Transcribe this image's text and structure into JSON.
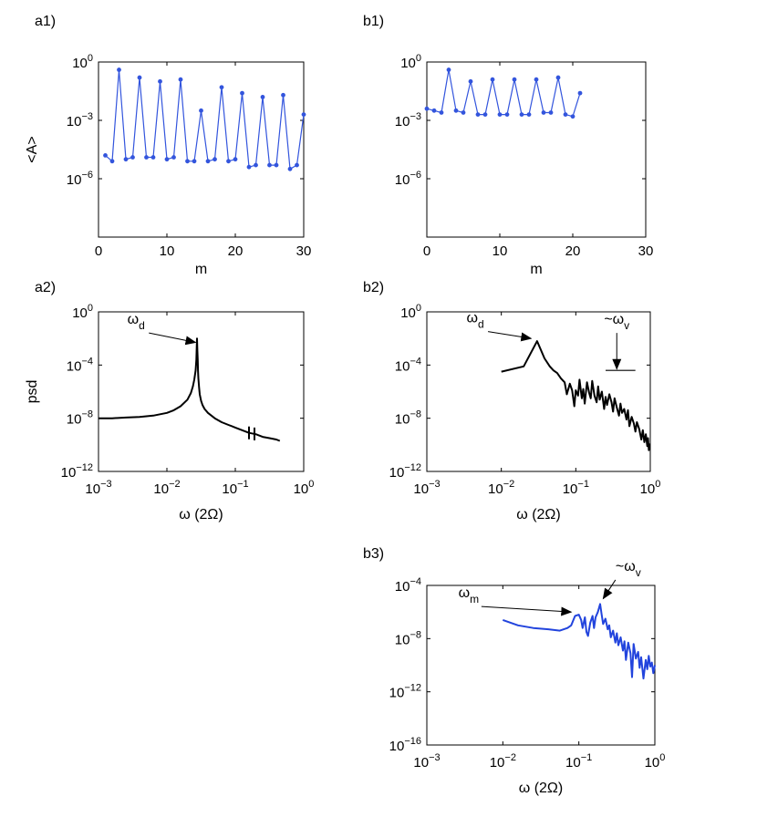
{
  "chart_data": [
    {
      "id": "a1",
      "panel_label": "a1)",
      "type": "line",
      "xlabel": "m",
      "ylabel": "<A>",
      "yscale": "log",
      "xlim": [
        0,
        30
      ],
      "ylim_exp": [
        -9,
        0
      ],
      "xticks": [
        0,
        10,
        20,
        30
      ],
      "yticks_exp": [
        0,
        -3,
        -6
      ],
      "color": "#3355dd",
      "markers": true,
      "series": [
        {
          "x": [
            1,
            2,
            3,
            4,
            5,
            6,
            7,
            8,
            9,
            10,
            11,
            12,
            13,
            14,
            15,
            16,
            17,
            18,
            19,
            20,
            21,
            22,
            23,
            24,
            25,
            26,
            27,
            28,
            29,
            30
          ],
          "y_exp": [
            -4.8,
            -5.1,
            -0.4,
            -5.0,
            -4.9,
            -0.8,
            -4.9,
            -4.9,
            -1.0,
            -5.0,
            -4.9,
            -0.9,
            -5.1,
            -5.1,
            -2.5,
            -5.1,
            -5.0,
            -1.3,
            -5.1,
            -5.0,
            -1.6,
            -5.4,
            -5.3,
            -1.8,
            -5.3,
            -5.3,
            -1.7,
            -5.5,
            -5.3,
            -2.7
          ]
        }
      ]
    },
    {
      "id": "b1",
      "panel_label": "b1)",
      "type": "line",
      "xlabel": "m",
      "ylabel": "",
      "yscale": "log",
      "xlim": [
        0,
        30
      ],
      "ylim_exp": [
        -9,
        0
      ],
      "xticks": [
        0,
        10,
        20,
        30
      ],
      "yticks_exp": [
        0,
        -3,
        -6
      ],
      "color": "#3355dd",
      "markers": true,
      "series": [
        {
          "x": [
            0,
            1,
            2,
            3,
            4,
            5,
            6,
            7,
            8,
            9,
            10,
            11,
            12,
            13,
            14,
            15,
            16,
            17,
            18,
            19,
            20,
            21
          ],
          "y_exp": [
            -2.4,
            -2.5,
            -2.6,
            -0.4,
            -2.5,
            -2.6,
            -1.0,
            -2.7,
            -2.7,
            -0.9,
            -2.7,
            -2.7,
            -0.9,
            -2.7,
            -2.7,
            -0.9,
            -2.6,
            -2.6,
            -0.8,
            -2.7,
            -2.8,
            -1.6
          ]
        }
      ]
    },
    {
      "id": "a2",
      "panel_label": "a2)",
      "type": "line",
      "xlabel": "ω (2Ω)",
      "ylabel": "psd",
      "xscale": "log",
      "yscale": "log",
      "xlim_exp": [
        -3,
        0
      ],
      "ylim_exp": [
        -12,
        0
      ],
      "xticks_exp": [
        -3,
        -2,
        -1,
        0
      ],
      "yticks_exp": [
        0,
        -4,
        -8,
        -12
      ],
      "color": "#000000",
      "series": [
        {
          "x_exp": [
            -3,
            -2.8,
            -2.6,
            -2.4,
            -2.2,
            -2.0,
            -1.9,
            -1.8,
            -1.7,
            -1.65,
            -1.62,
            -1.6,
            -1.58,
            -1.57,
            -1.565,
            -1.56,
            -1.555,
            -1.55,
            -1.545,
            -1.54,
            -1.53,
            -1.52,
            -1.5,
            -1.48,
            -1.45,
            -1.4,
            -1.3,
            -1.2,
            -1.1,
            -1.0,
            -0.9,
            -0.8,
            -0.7,
            -0.6,
            -0.5,
            -0.4,
            -0.35
          ],
          "y_exp": [
            -8.0,
            -8.0,
            -7.95,
            -7.9,
            -7.8,
            -7.6,
            -7.4,
            -7.1,
            -6.6,
            -6.1,
            -5.6,
            -5.1,
            -4.4,
            -3.6,
            -2.9,
            -2.0,
            -2.9,
            -3.6,
            -4.4,
            -5.0,
            -5.7,
            -6.2,
            -6.7,
            -7.0,
            -7.3,
            -7.6,
            -8.0,
            -8.3,
            -8.5,
            -8.7,
            -8.9,
            -9.1,
            -9.2,
            -9.4,
            -9.5,
            -9.6,
            -9.7
          ]
        }
      ],
      "tick_marks_x_exp": [
        -0.8,
        -0.72
      ],
      "annotations": [
        {
          "base": "ω",
          "sub": "d",
          "x_exp": -2.45,
          "y_exp": -0.9,
          "arrow_to_x_exp": -1.58,
          "arrow_to_y_exp": -2.3
        }
      ]
    },
    {
      "id": "b2",
      "panel_label": "b2)",
      "type": "line",
      "xlabel": "ω (2Ω)",
      "ylabel": "",
      "xscale": "log",
      "yscale": "log",
      "xlim_exp": [
        -3,
        0
      ],
      "ylim_exp": [
        -12,
        0
      ],
      "xticks_exp": [
        -3,
        -2,
        -1,
        0
      ],
      "yticks_exp": [
        0,
        -4,
        -8,
        -12
      ],
      "color": "#000000",
      "series": [
        {
          "x_exp": [
            -2.0,
            -1.7,
            -1.52,
            -1.42,
            -1.35,
            -1.3,
            -1.25,
            -1.2,
            -1.15,
            -1.12,
            -1.08,
            -1.05,
            -1.02,
            -1.0,
            -0.97,
            -0.95,
            -0.92,
            -0.9,
            -0.88,
            -0.85,
            -0.82,
            -0.8,
            -0.78,
            -0.75,
            -0.72,
            -0.7,
            -0.68,
            -0.65,
            -0.62,
            -0.6,
            -0.58,
            -0.55,
            -0.52,
            -0.5,
            -0.48,
            -0.45,
            -0.42,
            -0.4,
            -0.38,
            -0.35,
            -0.32,
            -0.3,
            -0.28,
            -0.25,
            -0.22,
            -0.2,
            -0.18,
            -0.15,
            -0.12,
            -0.1,
            -0.08,
            -0.06,
            -0.04,
            -0.03,
            -0.02,
            -0.01
          ],
          "y_exp": [
            -4.5,
            -4.1,
            -2.2,
            -3.5,
            -4.1,
            -4.4,
            -4.6,
            -5.0,
            -5.3,
            -6.2,
            -5.4,
            -5.9,
            -7.1,
            -5.9,
            -6.3,
            -5.1,
            -6.5,
            -5.8,
            -6.9,
            -5.3,
            -6.1,
            -6.5,
            -5.2,
            -6.3,
            -6.8,
            -5.6,
            -6.6,
            -6.0,
            -7.3,
            -6.4,
            -7.0,
            -6.2,
            -6.8,
            -7.5,
            -6.5,
            -7.2,
            -7.8,
            -6.9,
            -7.6,
            -7.3,
            -8.1,
            -7.4,
            -8.6,
            -7.9,
            -8.4,
            -9.0,
            -8.3,
            -8.8,
            -9.6,
            -8.9,
            -9.8,
            -9.2,
            -10.1,
            -9.5,
            -10.4,
            -9.9
          ]
        }
      ],
      "hline": {
        "x_from_exp": -0.6,
        "x_to_exp": -0.2,
        "y_exp": -4.4
      },
      "annotations": [
        {
          "base": "ω",
          "sub": "d",
          "x_exp": -2.35,
          "y_exp": -0.8,
          "arrow_to_x_exp": -1.6,
          "arrow_to_y_exp": -2.0
        },
        {
          "prefix": "~",
          "base": "ω",
          "sub": "v",
          "x_exp": -0.45,
          "y_exp": -0.9,
          "arrow_to_x_exp": -0.45,
          "arrow_to_y_exp": -4.3
        }
      ]
    },
    {
      "id": "b3",
      "panel_label": "b3)",
      "type": "line",
      "xlabel": "ω (2Ω)",
      "ylabel": "",
      "xscale": "log",
      "yscale": "log",
      "xlim_exp": [
        -3,
        0
      ],
      "ylim_exp": [
        -16,
        -4
      ],
      "xticks_exp": [
        -3,
        -2,
        -1,
        0
      ],
      "yticks_exp": [
        -4,
        -8,
        -12,
        -16
      ],
      "color": "#2244dd",
      "series": [
        {
          "x_exp": [
            -2.0,
            -1.8,
            -1.6,
            -1.4,
            -1.25,
            -1.15,
            -1.1,
            -1.05,
            -1.0,
            -0.97,
            -0.95,
            -0.92,
            -0.9,
            -0.88,
            -0.85,
            -0.82,
            -0.8,
            -0.78,
            -0.75,
            -0.72,
            -0.7,
            -0.68,
            -0.65,
            -0.62,
            -0.6,
            -0.58,
            -0.55,
            -0.52,
            -0.5,
            -0.48,
            -0.45,
            -0.42,
            -0.4,
            -0.38,
            -0.35,
            -0.32,
            -0.3,
            -0.28,
            -0.25,
            -0.22,
            -0.2,
            -0.18,
            -0.15,
            -0.12,
            -0.1,
            -0.08,
            -0.06,
            -0.04,
            -0.02,
            0.0
          ],
          "y_exp": [
            -6.6,
            -7.0,
            -7.2,
            -7.3,
            -7.4,
            -7.2,
            -7.0,
            -6.3,
            -6.2,
            -6.6,
            -7.2,
            -6.4,
            -7.5,
            -7.8,
            -6.8,
            -6.3,
            -7.2,
            -6.4,
            -6.0,
            -5.4,
            -6.2,
            -6.9,
            -6.5,
            -7.3,
            -7.0,
            -7.9,
            -7.4,
            -8.3,
            -7.6,
            -8.5,
            -7.9,
            -8.9,
            -8.2,
            -9.6,
            -8.3,
            -9.1,
            -10.9,
            -8.4,
            -9.5,
            -9.0,
            -10.2,
            -9.4,
            -11.0,
            -9.6,
            -10.3,
            -9.3,
            -10.1,
            -9.8,
            -10.6,
            -10.0
          ]
        }
      ],
      "annotations": [
        {
          "base": "ω",
          "sub": "m",
          "x_exp": -2.45,
          "y_exp": -4.9,
          "arrow_to_x_exp": -1.1,
          "arrow_to_y_exp": -6.0
        },
        {
          "prefix": "~",
          "base": "ω",
          "sub": "v",
          "x_exp": -0.35,
          "y_exp": -2.9,
          "arrow_to_x_exp": -0.68,
          "arrow_to_y_exp": -5.0
        }
      ]
    }
  ]
}
